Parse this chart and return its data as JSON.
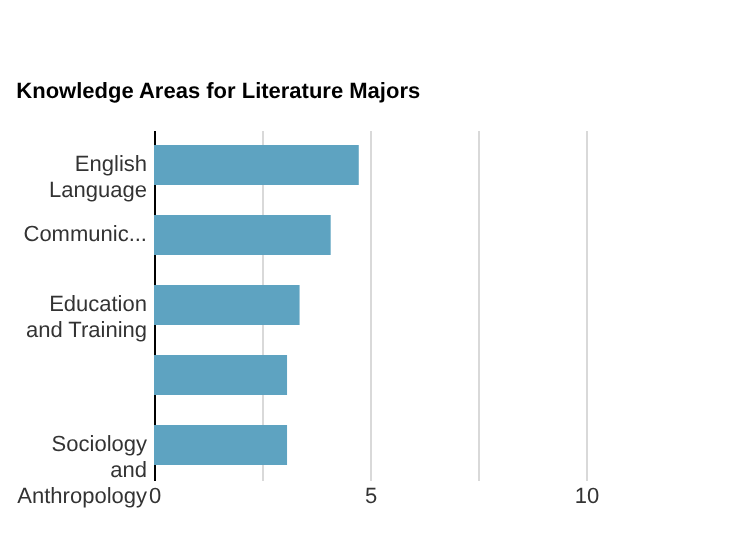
{
  "chart_data": {
    "type": "bar",
    "orientation": "horizontal",
    "title": "Knowledge Areas for Literature Majors",
    "categories": [
      "English Language",
      "Communic...",
      "Education and Training",
      null,
      "Sociology and Anthropology"
    ],
    "values": [
      4.74,
      4.09,
      3.37,
      3.08,
      3.08
    ],
    "color": "#5ea3c1",
    "xlim": [
      0,
      10
    ],
    "xticks": [
      0,
      {
        "value": 2.5,
        "label": null
      },
      5,
      {
        "value": 7.5,
        "label": null
      },
      10
    ],
    "grid": "x"
  }
}
